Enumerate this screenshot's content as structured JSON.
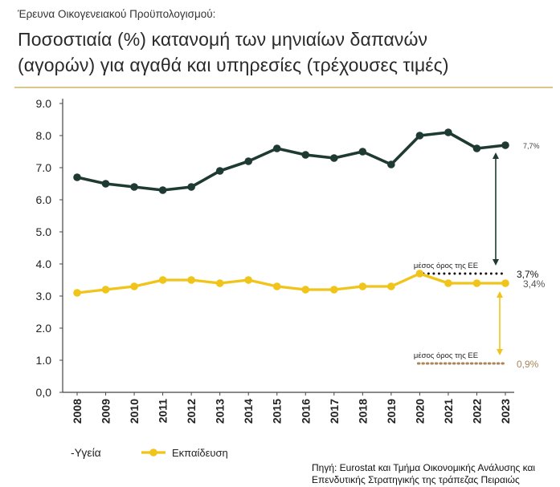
{
  "header": {
    "supertitle": "Έρευνα Οικογενειακού Προϋπολογισμού:",
    "title_line1": "Ποσοστιαία (%) κατανομή των μηνιαίων δαπανών",
    "title_line2": "(αγορών) για αγαθά και υπηρεσίες (τρέχουσες τιμές)"
  },
  "source": {
    "line1": "Πηγή: Eurostat και Τμήμα Οικονομικής Ανάλυσης και",
    "line2": "Επενδυτικής Στρατηγικής της τράπεζας Πειραιώς"
  },
  "chart_data": {
    "type": "line",
    "categories": [
      "2008",
      "2009",
      "2010",
      "2011",
      "2012",
      "2013",
      "2014",
      "2015",
      "2016",
      "2017",
      "2018",
      "2019",
      "2020",
      "2021",
      "2022",
      "2023"
    ],
    "ylim": [
      0,
      9
    ],
    "yticks": [
      "0,0",
      "1.0",
      "2.0",
      "3.0",
      "4.0",
      "5.0",
      "6.0",
      "7.0",
      "8.0",
      "9.0"
    ],
    "grid": false,
    "series": [
      {
        "name": "-Υγεία",
        "color": "#1e3a32",
        "values": [
          6.7,
          6.5,
          6.4,
          6.3,
          6.4,
          6.9,
          7.2,
          7.6,
          7.4,
          7.3,
          7.5,
          7.1,
          8.0,
          8.1,
          7.6,
          7.7
        ]
      },
      {
        "name": "Εκπαίδευση",
        "color": "#f0c419",
        "values": [
          3.1,
          3.2,
          3.3,
          3.5,
          3.5,
          3.4,
          3.5,
          3.3,
          3.2,
          3.2,
          3.3,
          3.3,
          3.7,
          3.4,
          3.4,
          3.4
        ]
      }
    ],
    "end_labels": [
      "7,7%",
      "3,4%"
    ],
    "reference_lines": [
      {
        "label": "μέσος όρος της ΕΕ",
        "value": 3.7,
        "value_label": "3,7%",
        "from": "2020",
        "to": "2023",
        "color": "#111111"
      },
      {
        "label": "μέσος όρος της ΕΕ",
        "value": 0.9,
        "value_label": "0,9%",
        "from": "2020",
        "to": "2023",
        "color": "#a8865a"
      }
    ],
    "legend_position": "bottom-left"
  }
}
